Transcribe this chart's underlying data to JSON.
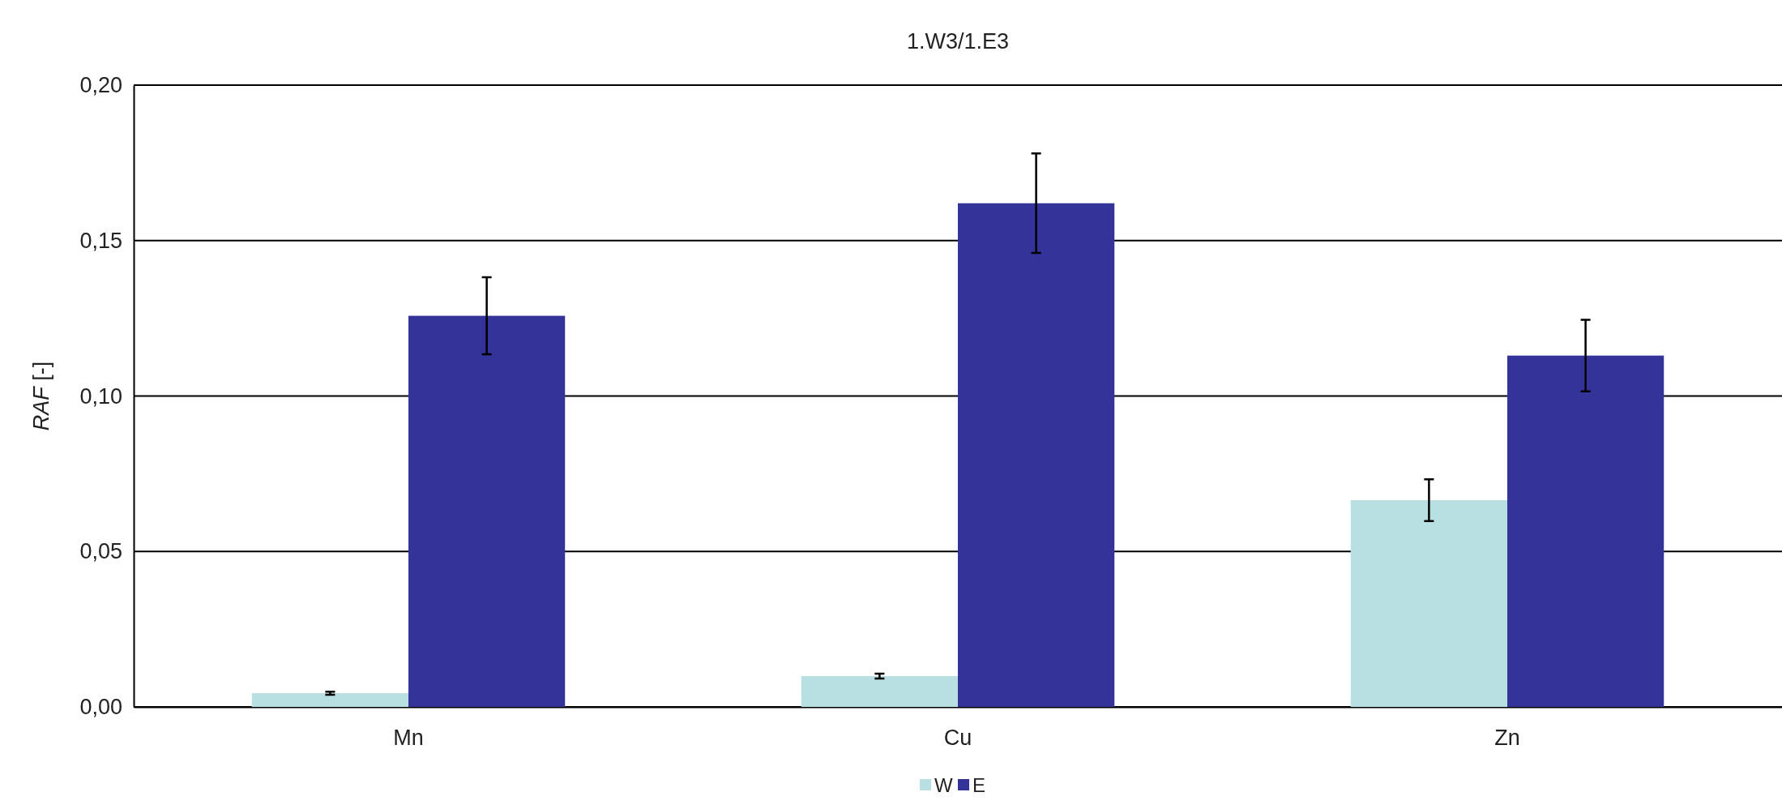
{
  "chart_data": {
    "type": "bar",
    "title": "1.W3/1.E3",
    "ylabel": "RAF [-]",
    "categories": [
      "Mn",
      "Cu",
      "Zn"
    ],
    "series": [
      {
        "name": "W",
        "color": "#b8dfe2",
        "values": [
          0.0044,
          0.0099,
          0.0665
        ],
        "errors": [
          0.0005,
          0.0008,
          0.0067
        ]
      },
      {
        "name": "E",
        "color": "#343399",
        "values": [
          0.1258,
          0.162,
          0.113
        ],
        "errors": [
          0.0124,
          0.016,
          0.0115
        ]
      }
    ],
    "ylim": [
      0,
      0.2
    ],
    "yticks": [
      {
        "value": 0,
        "label": "0,00"
      },
      {
        "value": 0.05,
        "label": "0,05"
      },
      {
        "value": 0.1,
        "label": "0,10"
      },
      {
        "value": 0.15,
        "label": "0,15"
      },
      {
        "value": 0.2,
        "label": "0,20"
      }
    ],
    "grid": "y",
    "legend": "bottom"
  }
}
